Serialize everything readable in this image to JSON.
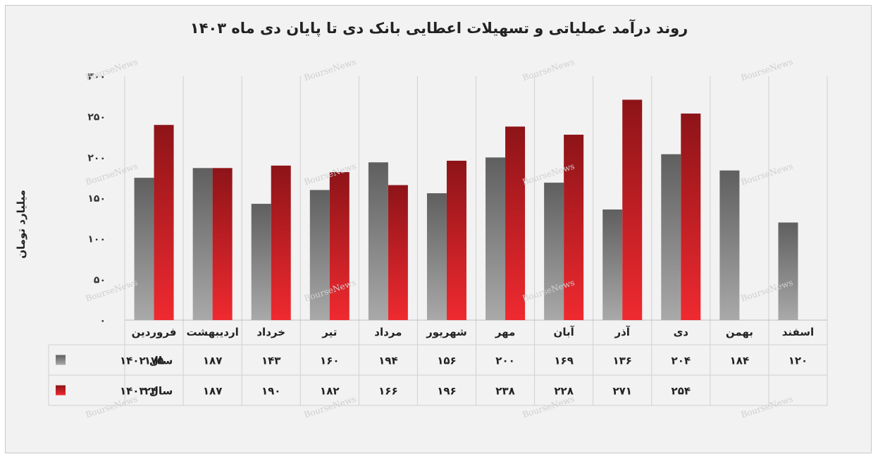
{
  "chart_data": {
    "type": "bar",
    "title": "روند درآمد عملیاتی و تسهیلات اعطایی بانک دی تا پایان دی ماه  ۱۴۰۳",
    "ylabel": "میلیارد تومان",
    "xlabel": "",
    "ylim": [
      0,
      300
    ],
    "yticks": [
      0,
      50,
      100,
      150,
      200,
      250,
      300
    ],
    "ytick_labels": [
      "۰",
      "۵۰",
      "۱۰۰",
      "۱۵۰",
      "۲۰۰",
      "۲۵۰",
      "۳۰۰"
    ],
    "grid": "vertical-category-lines",
    "legend": "data-table-left",
    "categories": [
      "فروردین",
      "اردیبهشت",
      "خرداد",
      "تیر",
      "مرداد",
      "شهریور",
      "مهر",
      "آبان",
      "آذر",
      "دی",
      "بهمن",
      "اسفند"
    ],
    "series": [
      {
        "name": "سال ۱۴۰۲",
        "color": "#6e6e6e",
        "values": [
          175,
          187,
          143,
          160,
          194,
          156,
          200,
          169,
          136,
          204,
          184,
          120
        ],
        "labels": [
          "۱۷۵",
          "۱۸۷",
          "۱۴۳",
          "۱۶۰",
          "۱۹۴",
          "۱۵۶",
          "۲۰۰",
          "۱۶۹",
          "۱۳۶",
          "۲۰۴",
          "۱۸۴",
          "۱۲۰"
        ]
      },
      {
        "name": "سال ۱۴۰۳",
        "color": "#c0161c",
        "values": [
          240,
          187,
          190,
          182,
          166,
          196,
          238,
          228,
          271,
          254,
          null,
          null
        ],
        "labels": [
          "۲۴۰",
          "۱۸۷",
          "۱۹۰",
          "۱۸۲",
          "۱۶۶",
          "۱۹۶",
          "۲۳۸",
          "۲۲۸",
          "۲۷۱",
          "۲۵۴",
          "",
          ""
        ]
      }
    ]
  },
  "watermark": "BourseNews"
}
